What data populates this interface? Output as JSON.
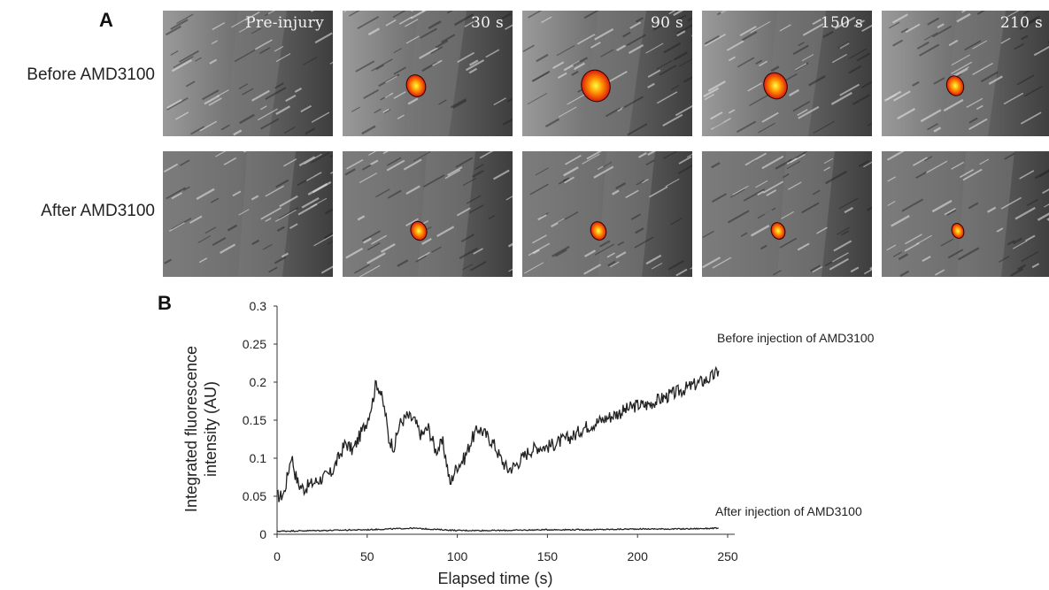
{
  "panel_a": {
    "letter": "A",
    "rows": [
      {
        "label": "Before AMD3100",
        "clot_size": [
          0,
          0.55,
          1.0,
          0.75,
          0.45
        ]
      },
      {
        "label": "After AMD3100",
        "clot_size": [
          0,
          0.4,
          0.38,
          0.3,
          0.22
        ]
      }
    ],
    "timepoints": [
      "Pre-injury",
      "30 s",
      "90 s",
      "150 s",
      "210 s"
    ]
  },
  "panel_b": {
    "letter": "B"
  },
  "chart_data": {
    "type": "line",
    "xlabel": "Elapsed time (s)",
    "ylabel_lines": [
      "Integrated fluorescence",
      "intensity (AU)"
    ],
    "xlim": [
      0,
      250
    ],
    "ylim": [
      0,
      0.3
    ],
    "xticks": [
      "0",
      "50",
      "100",
      "150",
      "200",
      "250"
    ],
    "yticks": [
      "0",
      "0.05",
      "0.1",
      "0.15",
      "0.2",
      "0.25",
      "0.3"
    ],
    "ytick_values": [
      0,
      0.05,
      0.1,
      0.15,
      0.2,
      0.25,
      0.3
    ],
    "xtick_values": [
      0,
      50,
      100,
      150,
      200,
      250
    ],
    "series": [
      {
        "name": "Before injection of AMD3100",
        "x": [
          0,
          2,
          4,
          6,
          8,
          10,
          12,
          15,
          18,
          22,
          26,
          30,
          34,
          38,
          42,
          46,
          50,
          53,
          55,
          57,
          60,
          62,
          65,
          68,
          72,
          76,
          80,
          84,
          88,
          92,
          94,
          96,
          98,
          100,
          104,
          108,
          112,
          116,
          120,
          124,
          128,
          132,
          136,
          140,
          145,
          150,
          155,
          160,
          165,
          170,
          175,
          180,
          185,
          190,
          195,
          200,
          205,
          210,
          215,
          220,
          225,
          230,
          235,
          240,
          243,
          245
        ],
        "y": [
          0.05,
          0.05,
          0.055,
          0.08,
          0.105,
          0.08,
          0.065,
          0.06,
          0.065,
          0.07,
          0.075,
          0.08,
          0.1,
          0.12,
          0.11,
          0.13,
          0.15,
          0.175,
          0.2,
          0.19,
          0.16,
          0.125,
          0.115,
          0.145,
          0.155,
          0.15,
          0.13,
          0.14,
          0.11,
          0.12,
          0.095,
          0.065,
          0.08,
          0.09,
          0.1,
          0.125,
          0.14,
          0.13,
          0.12,
          0.1,
          0.085,
          0.09,
          0.1,
          0.11,
          0.115,
          0.115,
          0.12,
          0.125,
          0.13,
          0.14,
          0.145,
          0.15,
          0.155,
          0.16,
          0.165,
          0.17,
          0.17,
          0.175,
          0.18,
          0.185,
          0.19,
          0.195,
          0.2,
          0.205,
          0.21,
          0.215
        ]
      },
      {
        "name": "After injection of AMD3100",
        "x": [
          0,
          25,
          50,
          75,
          100,
          125,
          150,
          175,
          200,
          225,
          245
        ],
        "y": [
          0.004,
          0.005,
          0.006,
          0.008,
          0.005,
          0.005,
          0.006,
          0.006,
          0.007,
          0.007,
          0.008
        ]
      }
    ]
  }
}
